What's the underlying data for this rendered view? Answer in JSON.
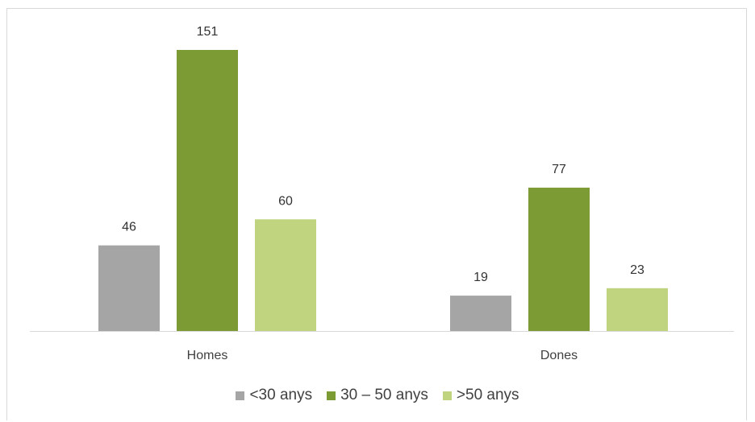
{
  "chart_data": {
    "type": "bar",
    "title": "",
    "xlabel": "",
    "ylabel": "",
    "categories": [
      "Homes",
      "Dones"
    ],
    "series": [
      {
        "name": "<30 anys",
        "color": "#a5a5a5",
        "values": [
          46,
          19
        ]
      },
      {
        "name": "30 – 50 anys",
        "color": "#7d9b35",
        "values": [
          151,
          77
        ]
      },
      {
        "name": ">50 anys",
        "color": "#c0d37f",
        "values": [
          60,
          23
        ]
      }
    ],
    "ylim": [
      0,
      160
    ],
    "grid": false,
    "legend": "bottom",
    "data_labels": true
  }
}
